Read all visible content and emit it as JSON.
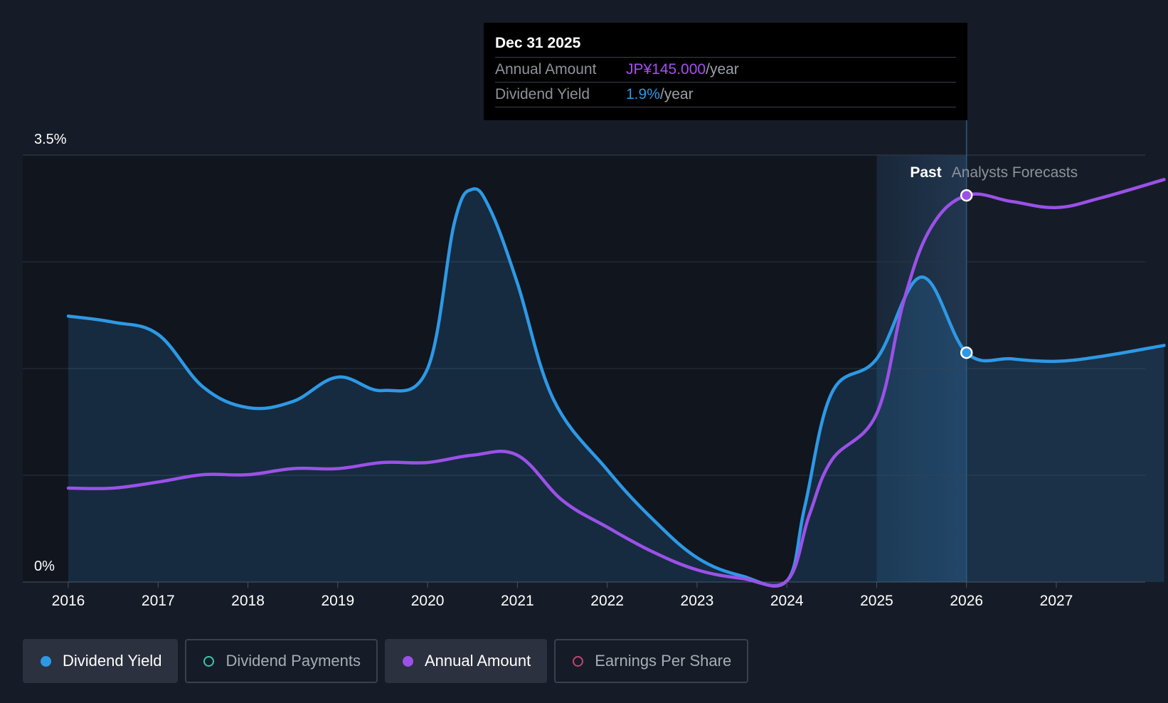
{
  "chart_data": {
    "type": "line",
    "x_ticks": [
      "2016",
      "2017",
      "2018",
      "2019",
      "2020",
      "2021",
      "2022",
      "2023",
      "2024",
      "2025",
      "2026",
      "2027"
    ],
    "y_ticks": [
      "3.5%",
      "0%"
    ],
    "ylim": [
      0,
      3.5
    ],
    "xlim": [
      2016,
      2028.2
    ],
    "grid": "horizontal",
    "regions": {
      "past_label": "Past",
      "forecast_label": "Analysts Forecasts",
      "past_band_start": 2025.0,
      "forecast_start": 2026.0
    },
    "series": [
      {
        "name": "Dividend Yield",
        "color": "#2d99e6",
        "area": true,
        "points": [
          [
            2016.0,
            2.18
          ],
          [
            2016.5,
            2.13
          ],
          [
            2017.0,
            2.03
          ],
          [
            2017.5,
            1.6
          ],
          [
            2018.0,
            1.43
          ],
          [
            2018.5,
            1.48
          ],
          [
            2019.0,
            1.68
          ],
          [
            2019.5,
            1.57
          ],
          [
            2020.0,
            1.75
          ],
          [
            2020.3,
            2.95
          ],
          [
            2020.5,
            3.22
          ],
          [
            2020.7,
            3.05
          ],
          [
            2021.0,
            2.45
          ],
          [
            2021.4,
            1.5
          ],
          [
            2022.0,
            0.92
          ],
          [
            2022.5,
            0.52
          ],
          [
            2023.0,
            0.2
          ],
          [
            2023.5,
            0.05
          ],
          [
            2024.0,
            0.01
          ],
          [
            2024.2,
            0.62
          ],
          [
            2024.5,
            1.55
          ],
          [
            2025.0,
            1.83
          ],
          [
            2025.5,
            2.5
          ],
          [
            2026.0,
            1.88
          ],
          [
            2026.5,
            1.83
          ],
          [
            2027.0,
            1.81
          ],
          [
            2027.5,
            1.85
          ],
          [
            2028.2,
            1.94
          ]
        ]
      },
      {
        "name": "Annual Amount",
        "color": "#9b51e8",
        "area": false,
        "points": [
          [
            2016.0,
            0.77
          ],
          [
            2016.5,
            0.77
          ],
          [
            2017.0,
            0.82
          ],
          [
            2017.5,
            0.88
          ],
          [
            2018.0,
            0.88
          ],
          [
            2018.5,
            0.93
          ],
          [
            2019.0,
            0.93
          ],
          [
            2019.5,
            0.98
          ],
          [
            2020.0,
            0.98
          ],
          [
            2020.5,
            1.04
          ],
          [
            2021.0,
            1.04
          ],
          [
            2021.5,
            0.67
          ],
          [
            2022.0,
            0.45
          ],
          [
            2022.5,
            0.25
          ],
          [
            2023.0,
            0.1
          ],
          [
            2023.5,
            0.03
          ],
          [
            2024.0,
            0.01
          ],
          [
            2024.25,
            0.55
          ],
          [
            2024.5,
            1.0
          ],
          [
            2025.0,
            1.38
          ],
          [
            2025.3,
            2.3
          ],
          [
            2025.6,
            2.9
          ],
          [
            2026.0,
            3.17
          ],
          [
            2026.5,
            3.12
          ],
          [
            2027.0,
            3.07
          ],
          [
            2027.5,
            3.15
          ],
          [
            2028.2,
            3.3
          ]
        ]
      }
    ],
    "highlight_x": 2026.0,
    "highlight_points": {
      "Dividend Yield": 1.88,
      "Annual Amount": 3.17
    }
  },
  "tooltip": {
    "date": "Dec 31 2025",
    "rows": [
      {
        "label": "Annual Amount",
        "value": "JP¥145.000",
        "unit": "/year",
        "color": "#a54ff0"
      },
      {
        "label": "Dividend Yield",
        "value": "1.9%",
        "unit": "/year",
        "color": "#2d99e6"
      }
    ]
  },
  "legend": [
    {
      "label": "Dividend Yield",
      "active": true,
      "color": "#2d99e6",
      "filled": true
    },
    {
      "label": "Dividend Payments",
      "active": false,
      "color": "#3bc4ae",
      "filled": false
    },
    {
      "label": "Annual Amount",
      "active": true,
      "color": "#9b51e8",
      "filled": true
    },
    {
      "label": "Earnings Per Share",
      "active": false,
      "color": "#c2426f",
      "filled": false
    }
  ]
}
